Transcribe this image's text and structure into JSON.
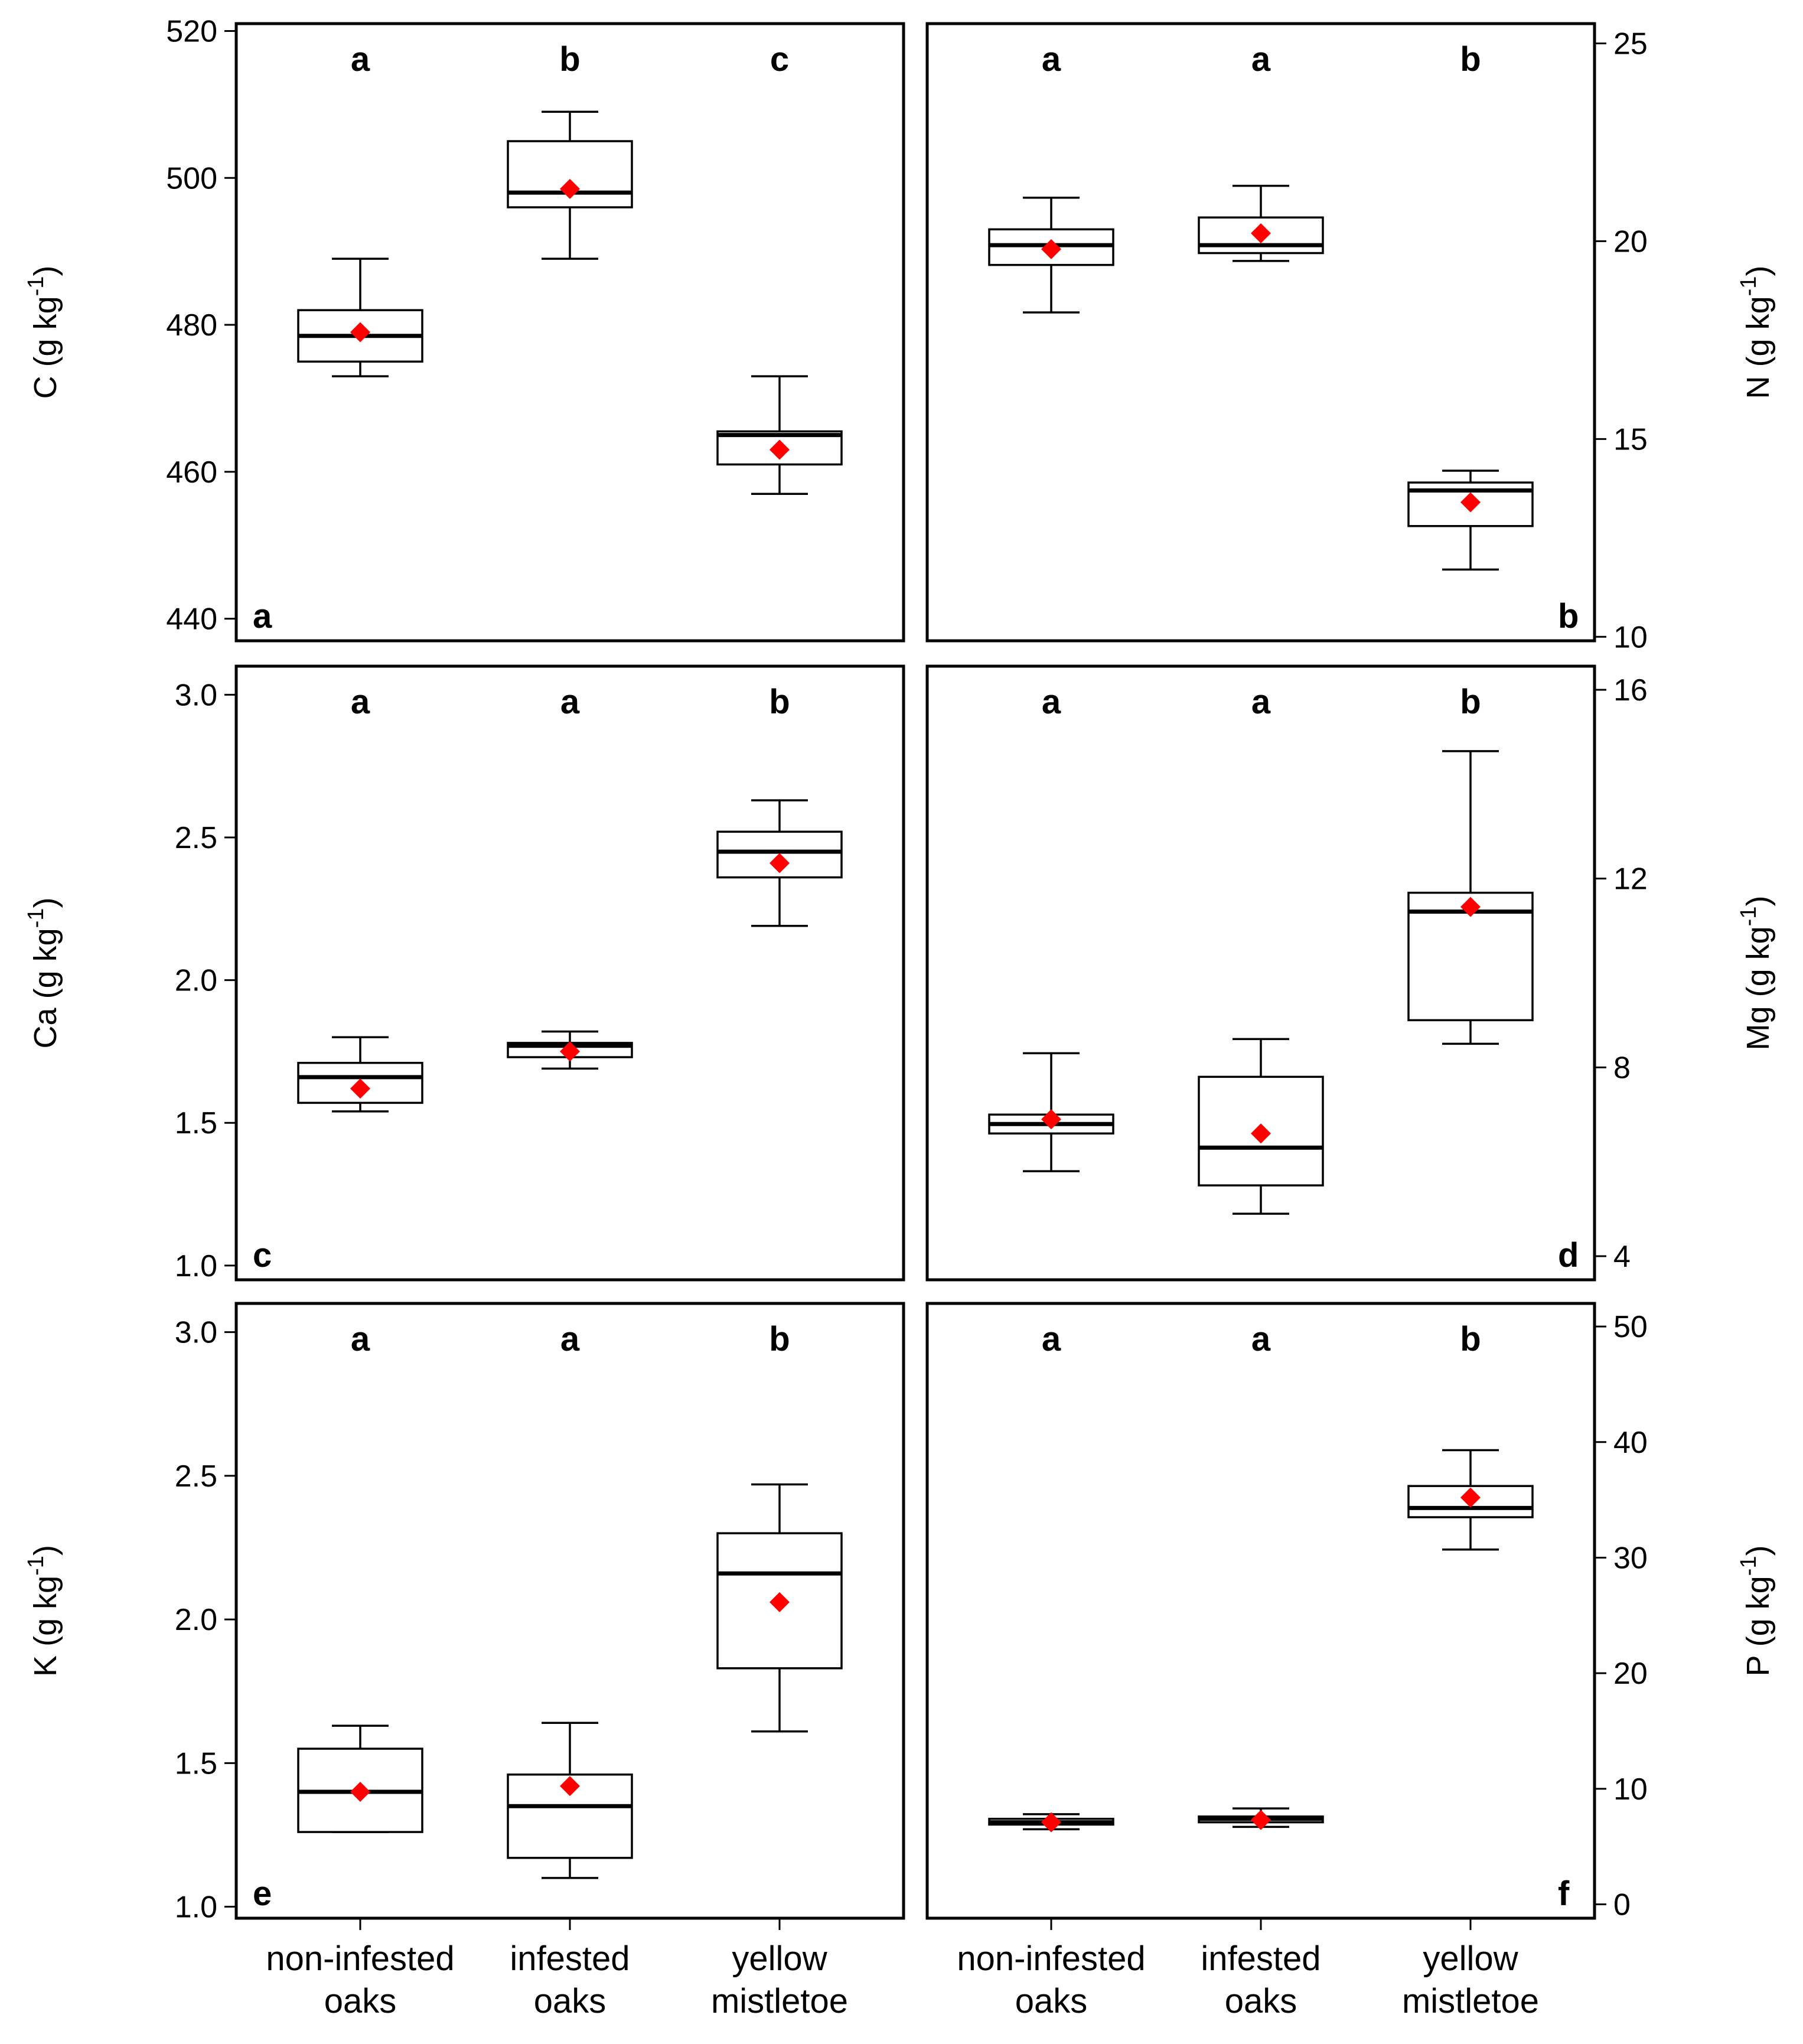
{
  "chart_data": [
    {
      "type": "box",
      "panel": "a",
      "ylabel": "C",
      "yunit_base": "(g kg",
      "yunit_exp": "-1",
      "yunit_close": ")",
      "ylim": [
        437,
        521
      ],
      "yticks": [
        440,
        460,
        480,
        500,
        520
      ],
      "ytick_labels": [
        "440",
        "460",
        "480",
        "500",
        "520"
      ],
      "axis_side": "left",
      "categories": [
        "non-infested oaks",
        "infested oaks",
        "yellow mistletoe"
      ],
      "significance": [
        "a",
        "b",
        "c"
      ],
      "series": [
        {
          "name": "non-infested oaks",
          "whisker_low": 473,
          "q1": 475,
          "median": 478.5,
          "q3": 482,
          "whisker_high": 489,
          "mean": 479
        },
        {
          "name": "infested oaks",
          "whisker_low": 489,
          "q1": 496,
          "median": 498,
          "q3": 505,
          "whisker_high": 509,
          "mean": 498.5
        },
        {
          "name": "yellow mistletoe",
          "whisker_low": 457,
          "q1": 461,
          "median": 465,
          "q3": 465.5,
          "whisker_high": 473,
          "mean": 463
        }
      ]
    },
    {
      "type": "box",
      "panel": "b",
      "ylabel": "N",
      "yunit_base": "(g kg",
      "yunit_exp": "-1",
      "yunit_close": ")",
      "ylim": [
        9.9,
        25.5
      ],
      "yticks": [
        10,
        15,
        20,
        25
      ],
      "ytick_labels": [
        "10",
        "15",
        "20",
        "25"
      ],
      "axis_side": "right",
      "categories": [
        "non-infested oaks",
        "infested oaks",
        "yellow mistletoe"
      ],
      "significance": [
        "a",
        "a",
        "b"
      ],
      "series": [
        {
          "name": "non-infested oaks",
          "whisker_low": 18.2,
          "q1": 19.4,
          "median": 19.9,
          "q3": 20.3,
          "whisker_high": 21.1,
          "mean": 19.8
        },
        {
          "name": "infested oaks",
          "whisker_low": 19.5,
          "q1": 19.7,
          "median": 19.9,
          "q3": 20.6,
          "whisker_high": 21.4,
          "mean": 20.2
        },
        {
          "name": "yellow mistletoe",
          "whisker_low": 11.7,
          "q1": 12.8,
          "median": 13.7,
          "q3": 13.9,
          "whisker_high": 14.2,
          "mean": 13.4
        }
      ]
    },
    {
      "type": "box",
      "panel": "c",
      "ylabel": "Ca",
      "yunit_base": "(g kg",
      "yunit_exp": "-1",
      "yunit_close": ")",
      "ylim": [
        0.95,
        3.1
      ],
      "yticks": [
        1.0,
        1.5,
        2.0,
        2.5,
        3.0
      ],
      "ytick_labels": [
        "1.0",
        "1.5",
        "2.0",
        "2.5",
        "3.0"
      ],
      "axis_side": "left",
      "categories": [
        "non-infested oaks",
        "infested oaks",
        "yellow mistletoe"
      ],
      "significance": [
        "a",
        "a",
        "b"
      ],
      "series": [
        {
          "name": "non-infested oaks",
          "whisker_low": 1.54,
          "q1": 1.57,
          "median": 1.66,
          "q3": 1.71,
          "whisker_high": 1.8,
          "mean": 1.62
        },
        {
          "name": "infested oaks",
          "whisker_low": 1.69,
          "q1": 1.73,
          "median": 1.77,
          "q3": 1.78,
          "whisker_high": 1.82,
          "mean": 1.75
        },
        {
          "name": "yellow mistletoe",
          "whisker_low": 2.19,
          "q1": 2.36,
          "median": 2.45,
          "q3": 2.52,
          "whisker_high": 2.63,
          "mean": 2.41
        }
      ]
    },
    {
      "type": "box",
      "panel": "d",
      "ylabel": "Mg",
      "yunit_base": "(g kg",
      "yunit_exp": "-1",
      "yunit_close": ")",
      "ylim": [
        3.5,
        16.5
      ],
      "yticks": [
        4,
        8,
        12,
        16
      ],
      "ytick_labels": [
        "4",
        "8",
        "12",
        "16"
      ],
      "axis_side": "right",
      "categories": [
        "non-infested oaks",
        "infested oaks",
        "yellow mistletoe"
      ],
      "significance": [
        "a",
        "a",
        "b"
      ],
      "series": [
        {
          "name": "non-infested oaks",
          "whisker_low": 5.8,
          "q1": 6.6,
          "median": 6.8,
          "q3": 7.0,
          "whisker_high": 8.3,
          "mean": 6.9
        },
        {
          "name": "infested oaks",
          "whisker_low": 4.9,
          "q1": 5.5,
          "median": 6.3,
          "q3": 7.8,
          "whisker_high": 8.6,
          "mean": 6.6
        },
        {
          "name": "yellow mistletoe",
          "whisker_low": 8.5,
          "q1": 9.0,
          "median": 11.3,
          "q3": 11.7,
          "whisker_high": 14.7,
          "mean": 11.4
        }
      ]
    },
    {
      "type": "box",
      "panel": "e",
      "ylabel": "K",
      "yunit_base": "(g kg",
      "yunit_exp": "-1",
      "yunit_close": ")",
      "ylim": [
        0.96,
        3.1
      ],
      "yticks": [
        1.0,
        1.5,
        2.0,
        2.5,
        3.0
      ],
      "ytick_labels": [
        "1.0",
        "1.5",
        "2.0",
        "2.5",
        "3.0"
      ],
      "axis_side": "left",
      "categories": [
        "non-infested oaks",
        "infested oaks",
        "yellow mistletoe"
      ],
      "significance": [
        "a",
        "a",
        "b"
      ],
      "series": [
        {
          "name": "non-infested oaks",
          "whisker_low": 1.26,
          "q1": 1.26,
          "median": 1.4,
          "q3": 1.55,
          "whisker_high": 1.63,
          "mean": 1.4
        },
        {
          "name": "infested oaks",
          "whisker_low": 1.1,
          "q1": 1.17,
          "median": 1.35,
          "q3": 1.46,
          "whisker_high": 1.64,
          "mean": 1.42
        },
        {
          "name": "yellow mistletoe",
          "whisker_low": 1.61,
          "q1": 1.83,
          "median": 2.16,
          "q3": 2.3,
          "whisker_high": 2.47,
          "mean": 2.06
        }
      ]
    },
    {
      "type": "box",
      "panel": "f",
      "ylabel": "P",
      "yunit_base": "(g kg",
      "yunit_exp": "-1",
      "yunit_close": ")",
      "ylim": [
        -1.2,
        52
      ],
      "yticks": [
        0,
        10,
        20,
        30,
        40,
        50
      ],
      "ytick_labels": [
        "0",
        "10",
        "20",
        "30",
        "40",
        "50"
      ],
      "axis_side": "right",
      "categories": [
        "non-infested oaks",
        "infested oaks",
        "yellow mistletoe"
      ],
      "significance": [
        "a",
        "a",
        "b"
      ],
      "series": [
        {
          "name": "non-infested oaks",
          "whisker_low": 6.5,
          "q1": 6.9,
          "median": 7.1,
          "q3": 7.4,
          "whisker_high": 7.8,
          "mean": 7.1
        },
        {
          "name": "infested oaks",
          "whisker_low": 6.7,
          "q1": 7.1,
          "median": 7.4,
          "q3": 7.6,
          "whisker_high": 8.3,
          "mean": 7.3
        },
        {
          "name": "yellow mistletoe",
          "whisker_low": 30.7,
          "q1": 33.5,
          "median": 34.3,
          "q3": 36.2,
          "whisker_high": 39.3,
          "mean": 35.2
        }
      ]
    }
  ],
  "x_axis": {
    "category_lines": [
      {
        "line1": "non-infested",
        "line2": "oaks"
      },
      {
        "line1": "infested",
        "line2": "oaks"
      },
      {
        "line1": "yellow",
        "line2": "mistletoe"
      }
    ]
  },
  "colors": {
    "mean_marker": "#ff0000",
    "box_fill": "#ffffff",
    "line": "#000000"
  }
}
